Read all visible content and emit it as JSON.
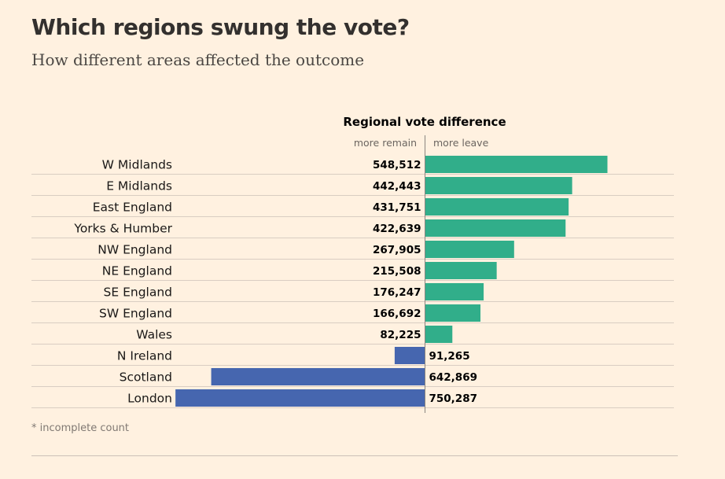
{
  "title": "Which regions swung the vote?",
  "subtitle": "How different areas affected the outcome",
  "footnote": "* incomplete count",
  "colors": {
    "background": "#fff1e0",
    "leave": "#31ae8a",
    "remain": "#4666af"
  },
  "chart_data": {
    "type": "bar",
    "orientation": "horizontal",
    "title": "Regional vote difference",
    "direction_labels": {
      "negative": "more remain",
      "positive": "more leave"
    },
    "categories": [
      "W Midlands",
      "E Midlands",
      "East England",
      "Yorks & Humber",
      "NW England",
      "NE England",
      "SE England",
      "SW England",
      "Wales",
      "N Ireland",
      "Scotland",
      "London"
    ],
    "values": [
      548512,
      442443,
      431751,
      422639,
      267905,
      215508,
      176247,
      166692,
      82225,
      -91265,
      -642869,
      -750287
    ],
    "value_labels": [
      "548,512",
      "442,443",
      "431,751",
      "422,639",
      "267,905",
      "215,508",
      "176,247",
      "166,692",
      "82,225",
      "91,265",
      "642,869",
      "750,287"
    ],
    "grid": false
  }
}
